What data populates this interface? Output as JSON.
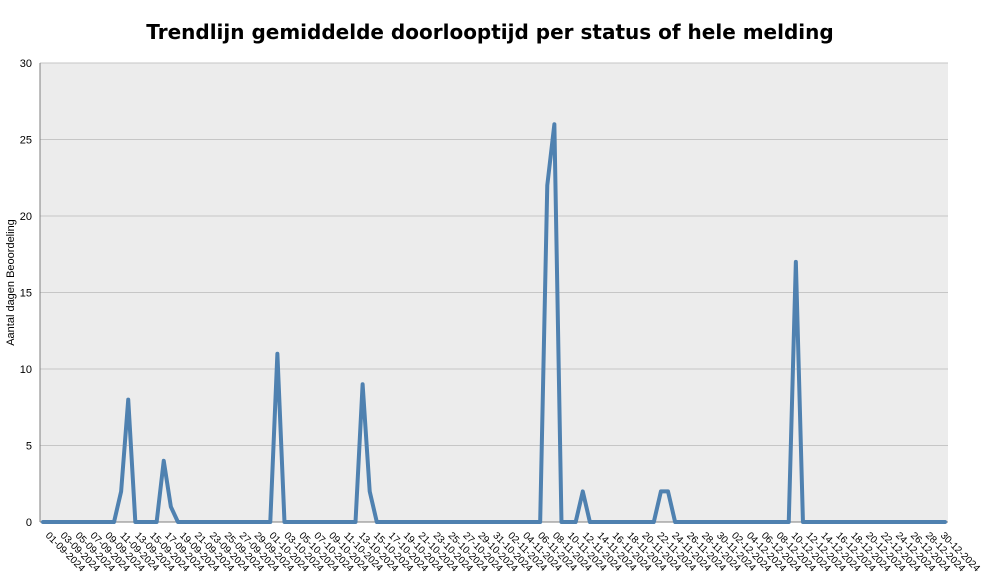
{
  "chart_data": {
    "type": "line",
    "title": "Trendlijn gemiddelde doorlooptijd per status of hele melding",
    "xlabel": "",
    "ylabel": "Aantal dagen Beoordeling",
    "ylim": [
      0,
      30
    ],
    "yticks": [
      0,
      5,
      10,
      15,
      20,
      25,
      30
    ],
    "grid": true,
    "legend": "none",
    "colors": {
      "line": "#4f81b0",
      "plot_bg": "#ececec",
      "grid": "#c6c6c6",
      "axis": "#7f7f7f"
    },
    "x_tick_labels": [
      "01-09-2024",
      "03-09-2024",
      "05-09-2024",
      "07-09-2024",
      "09-09-2024",
      "11-09-2024",
      "13-09-2024",
      "15-09-2024",
      "17-09-2024",
      "19-09-2024",
      "21-09-2024",
      "23-09-2024",
      "25-09-2024",
      "27-09-2024",
      "29-09-2024",
      "01-10-2024",
      "03-10-2024",
      "05-10-2024",
      "07-10-2024",
      "09-10-2024",
      "11-10-2024",
      "13-10-2024",
      "15-10-2024",
      "17-10-2024",
      "19-10-2024",
      "21-10-2024",
      "23-10-2024",
      "25-10-2024",
      "27-10-2024",
      "29-10-2024",
      "31-10-2024",
      "02-11-2024",
      "04-11-2024",
      "06-11-2024",
      "08-11-2024",
      "10-11-2024",
      "12-11-2024",
      "14-11-2024",
      "16-11-2024",
      "18-11-2024",
      "20-11-2024",
      "22-11-2024",
      "24-11-2024",
      "26-11-2024",
      "28-11-2024",
      "30-11-2024",
      "02-12-2024",
      "04-12-2024",
      "06-12-2024",
      "08-12-2024",
      "10-12-2024",
      "12-12-2024",
      "14-12-2024",
      "16-12-2024",
      "18-12-2024",
      "20-12-2024",
      "22-12-2024",
      "24-12-2024",
      "26-12-2024",
      "28-12-2024",
      "30-12-2024"
    ],
    "series": [
      {
        "name": "",
        "values": [
          0,
          0,
          0,
          0,
          0,
          0,
          0,
          0,
          0,
          0,
          0,
          2,
          8,
          0,
          0,
          0,
          0,
          4,
          1,
          0,
          0,
          0,
          0,
          0,
          0,
          0,
          0,
          0,
          0,
          0,
          0,
          0,
          0,
          11,
          0,
          0,
          0,
          0,
          0,
          0,
          0,
          0,
          0,
          0,
          0,
          9,
          2,
          0,
          0,
          0,
          0,
          0,
          0,
          0,
          0,
          0,
          0,
          0,
          0,
          0,
          0,
          0,
          0,
          0,
          0,
          0,
          0,
          0,
          0,
          0,
          0,
          22,
          26,
          0,
          0,
          0,
          2,
          0,
          0,
          0,
          0,
          0,
          0,
          0,
          0,
          0,
          0,
          2,
          2,
          0,
          0,
          0,
          0,
          0,
          0,
          0,
          0,
          0,
          0,
          0,
          0,
          0,
          0,
          0,
          0,
          0,
          17,
          0,
          0,
          0,
          0,
          0,
          0,
          0,
          0,
          0,
          0,
          0,
          0,
          0,
          0,
          0,
          0,
          0,
          0,
          0,
          0,
          0
        ]
      }
    ]
  }
}
